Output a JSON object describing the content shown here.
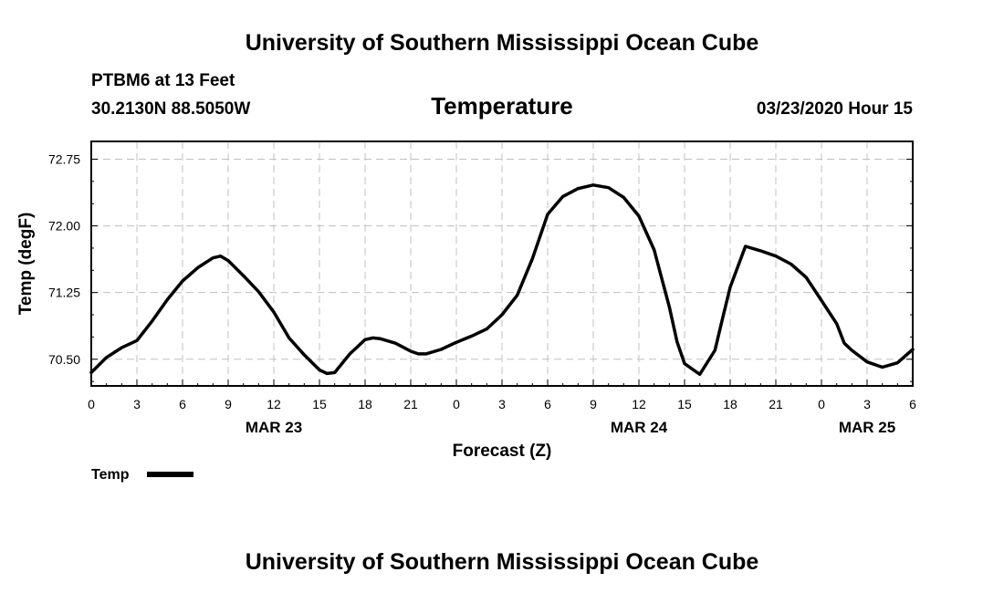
{
  "header": {
    "title_top": "University of Southern Mississippi Ocean Cube",
    "station": "PTBM6 at 13 Feet",
    "coords": "30.2130N 88.5050W",
    "variable": "Temperature",
    "datetime": "03/23/2020 Hour 15",
    "title_bottom": "University of Southern Mississippi Ocean Cube"
  },
  "colors": {
    "line": "#000000",
    "grid": "#c0c0c0",
    "background": "#ffffff"
  },
  "chart_data": {
    "type": "line",
    "title": "Temperature",
    "xlabel": "Forecast (Z)",
    "ylabel": "Temp (degF)",
    "xlim": [
      0,
      54
    ],
    "ylim": [
      70.2,
      72.95
    ],
    "x_ticks": [
      0,
      3,
      6,
      9,
      12,
      15,
      18,
      21,
      24,
      27,
      30,
      33,
      36,
      39,
      42,
      45,
      48,
      51,
      54
    ],
    "x_tick_labels": [
      "0",
      "3",
      "6",
      "9",
      "12",
      "15",
      "18",
      "21",
      "0",
      "3",
      "6",
      "9",
      "12",
      "15",
      "18",
      "21",
      "0",
      "3",
      "6"
    ],
    "y_ticks": [
      70.5,
      71.25,
      72.0,
      72.75
    ],
    "y_tick_labels": [
      "70.50",
      "71.25",
      "72.00",
      "72.75"
    ],
    "date_labels": [
      {
        "x": 12,
        "label": "MAR 23"
      },
      {
        "x": 36,
        "label": "MAR 24"
      },
      {
        "x": 51,
        "label": "MAR 25"
      }
    ],
    "grid": true,
    "legend": {
      "position": "bottom-left",
      "entries": [
        "Temp"
      ]
    },
    "series": [
      {
        "name": "Temp",
        "x": [
          0,
          1,
          2,
          3,
          4,
          5,
          6,
          7,
          8,
          8.5,
          9,
          10,
          11,
          12,
          13,
          14,
          15,
          15.5,
          16,
          17,
          18,
          18.5,
          19,
          20,
          21,
          21.5,
          22,
          23,
          24,
          25,
          26,
          27,
          28,
          29,
          30,
          31,
          32,
          33,
          34,
          35,
          36,
          37,
          38,
          38.5,
          39,
          40,
          41,
          41.5,
          42,
          43,
          44,
          45,
          46,
          47,
          48,
          49,
          49.5,
          50,
          51,
          52,
          53,
          54
        ],
        "values": [
          70.35,
          70.52,
          70.63,
          70.71,
          70.93,
          71.17,
          71.38,
          71.53,
          71.64,
          71.66,
          71.61,
          71.44,
          71.26,
          71.03,
          70.74,
          70.55,
          70.38,
          70.34,
          70.35,
          70.56,
          70.72,
          70.74,
          70.73,
          70.68,
          70.59,
          70.56,
          70.56,
          70.61,
          70.69,
          70.76,
          70.84,
          71.0,
          71.22,
          71.63,
          72.13,
          72.33,
          72.42,
          72.46,
          72.43,
          72.32,
          72.11,
          71.73,
          71.09,
          70.7,
          70.45,
          70.33,
          70.6,
          70.96,
          71.31,
          71.77,
          71.72,
          71.66,
          71.57,
          71.42,
          71.16,
          70.9,
          70.68,
          70.6,
          70.47,
          70.41,
          70.46,
          70.61
        ]
      }
    ]
  }
}
